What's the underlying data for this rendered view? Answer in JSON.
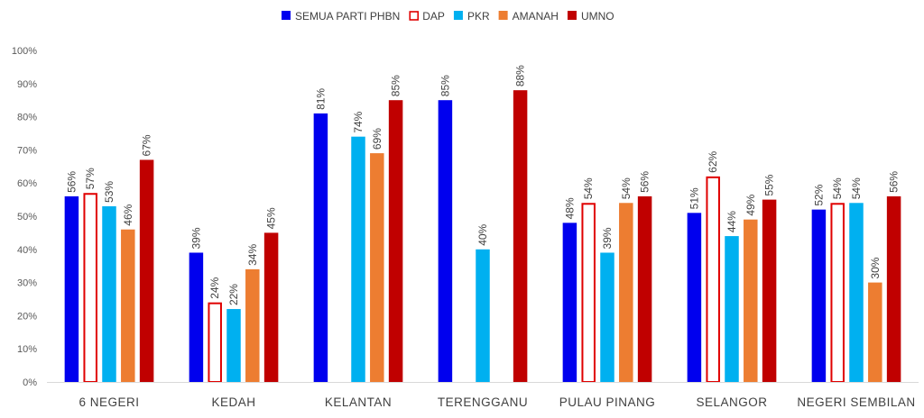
{
  "chart_data": {
    "type": "bar",
    "title": "",
    "xlabel": "",
    "ylabel": "",
    "ylim": [
      0,
      100
    ],
    "yticks": [
      0,
      10,
      20,
      30,
      40,
      50,
      60,
      70,
      80,
      90,
      100
    ],
    "ytick_suffix": "%",
    "grid": false,
    "legend_position": "top",
    "categories": [
      "6 NEGERI",
      "KEDAH",
      "KELANTAN",
      "TERENGGANU",
      "PULAU PINANG",
      "SELANGOR",
      "NEGERI SEMBILAN"
    ],
    "series": [
      {
        "name": "SEMUA PARTI PHBN",
        "color": "#0000EE",
        "style": "solid",
        "values": [
          56,
          39,
          81,
          85,
          48,
          51,
          52
        ]
      },
      {
        "name": "DAP",
        "color": "#E00000",
        "style": "outline",
        "values": [
          57,
          24,
          null,
          null,
          54,
          62,
          54
        ]
      },
      {
        "name": "PKR",
        "color": "#00B0F0",
        "style": "solid",
        "values": [
          53,
          22,
          74,
          40,
          39,
          44,
          54
        ]
      },
      {
        "name": "AMANAH",
        "color": "#ED7D31",
        "style": "solid",
        "values": [
          46,
          34,
          69,
          null,
          54,
          49,
          30
        ]
      },
      {
        "name": "UMNO",
        "color": "#C00000",
        "style": "solid",
        "values": [
          67,
          45,
          85,
          88,
          56,
          55,
          56
        ]
      }
    ]
  }
}
